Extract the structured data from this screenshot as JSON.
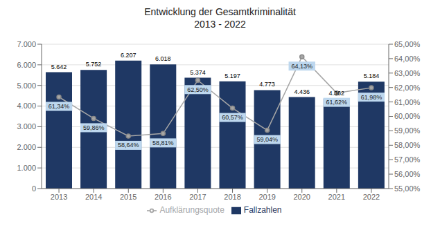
{
  "chart_data": {
    "type": "bar",
    "title": "Entwicklung der Gesamtkriminalität\n2013 - 2022",
    "categories": [
      "2013",
      "2014",
      "2015",
      "2016",
      "2017",
      "2018",
      "2019",
      "2020",
      "2021",
      "2022"
    ],
    "series": [
      {
        "name": "Fallzahlen",
        "type": "bar",
        "color": "#1F3864",
        "values": [
          5642,
          5752,
          6207,
          6018,
          5374,
          5197,
          4773,
          4436,
          4362,
          5184
        ],
        "value_labels": [
          "5.642",
          "5.752",
          "6.207",
          "6.018",
          "5.374",
          "5.197",
          "4.773",
          "4.436",
          "4.362",
          "5.184"
        ]
      },
      {
        "name": "Aufklärungsquote",
        "type": "line",
        "axis": "y2",
        "color": "#A6A6A6",
        "marker": "circle",
        "values": [
          61.34,
          59.86,
          58.64,
          58.81,
          62.5,
          60.57,
          59.04,
          64.13,
          61.62,
          61.98
        ],
        "value_labels": [
          "61,34%",
          "59,86%",
          "58,64%",
          "58,81%",
          "62,50%",
          "60,57%",
          "59,04%",
          "64,13%",
          "61,62%",
          "61,98%"
        ]
      }
    ],
    "ylim": [
      0,
      7000
    ],
    "yticks": [
      0,
      {
        "value": 1000,
        "label": "1.000"
      },
      {
        "value": 2000,
        "label": "2.000"
      },
      {
        "value": 3000,
        "label": "3.000"
      },
      {
        "value": 4000,
        "label": "4.000"
      },
      {
        "value": 5000,
        "label": "5.000"
      },
      {
        "value": 6000,
        "label": "6.000"
      },
      {
        "value": 7000,
        "label": "7.000"
      }
    ],
    "y2lim": [
      55,
      65
    ],
    "y2ticks": [
      {
        "value": 55,
        "label": "55,00%"
      },
      {
        "value": 56,
        "label": "56,00%"
      },
      {
        "value": 57,
        "label": "57,00%"
      },
      {
        "value": 58,
        "label": "58,00%"
      },
      {
        "value": 59,
        "label": "59,00%"
      },
      {
        "value": 60,
        "label": "60,00%"
      },
      {
        "value": 61,
        "label": "61,00%"
      },
      {
        "value": 62,
        "label": "62,00%"
      },
      {
        "value": 63,
        "label": "63,00%"
      },
      {
        "value": 64,
        "label": "64,00%"
      },
      {
        "value": 65,
        "label": "65,00%"
      }
    ],
    "grid": true,
    "legend": "bottom",
    "data_labels": true
  }
}
